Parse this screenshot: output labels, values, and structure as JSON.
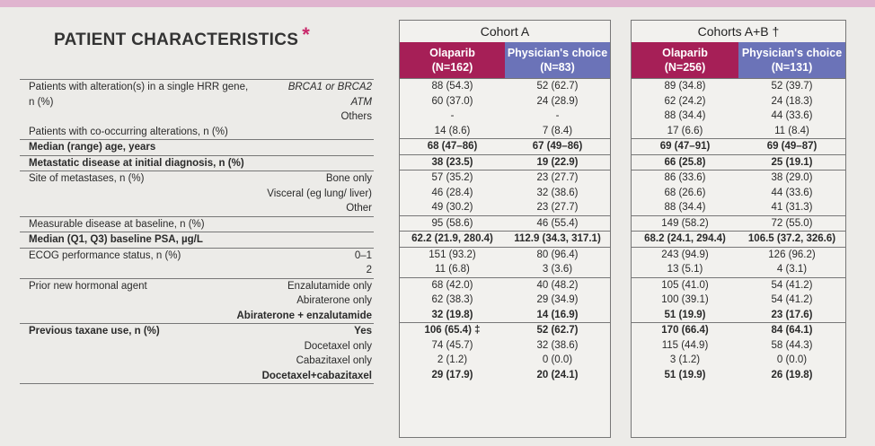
{
  "title": "PATIENT CHARACTERISTICS",
  "title_mark": "*",
  "cohort_a": {
    "title": "Cohort A",
    "col1": {
      "name": "Olaparib",
      "n": "(N=162)"
    },
    "col2": {
      "name": "Physician's choice",
      "n": "(N=83)"
    }
  },
  "cohort_ab": {
    "title": "Cohorts A+B †",
    "col1": {
      "name": "Olaparib",
      "n": "(N=256)"
    },
    "col2": {
      "name": "Physician's choice",
      "n": "(N=131)"
    }
  },
  "labels": {
    "hrr_l1": "Patients with alteration(s) in a single HRR gene,",
    "hrr_l2": "n (%)",
    "hrr_r1": "BRCA1 or BRCA2",
    "hrr_r2": "ATM",
    "hrr_r3": "Others",
    "cooc": "Patients with co-occurring alterations, n (%)",
    "age": "Median (range) age, years",
    "meta": "Metastatic disease at initial diagnosis, n (%)",
    "site": "Site of metastases, n (%)",
    "site_r1": "Bone only",
    "site_r2": "Visceral (eg lung/ liver)",
    "site_r3": "Other",
    "measurable": "Measurable disease at baseline, n (%)",
    "psa": "Median (Q1, Q3) baseline PSA, µg/L",
    "ecog": "ECOG performance status, n (%)",
    "ecog_r1": "0–1",
    "ecog_r2": "2",
    "hormonal": "Prior new hormonal agent",
    "hormonal_r1": "Enzalutamide only",
    "hormonal_r2": "Abiraterone only",
    "hormonal_r3": "Abiraterone + enzalutamide",
    "taxane": "Previous taxane use, n (%)",
    "taxane_r1": "Yes",
    "taxane_r2": "Docetaxel only",
    "taxane_r3": "Cabazitaxel only",
    "taxane_r4": "Docetaxel+cabazitaxel"
  },
  "values": {
    "a": {
      "hrr": [
        [
          "88 (54.3)",
          "52 (62.7)"
        ],
        [
          "60 (37.0)",
          "24 (28.9)"
        ],
        [
          "-",
          "-"
        ]
      ],
      "cooc": [
        "14 (8.6)",
        "7 (8.4)"
      ],
      "age": [
        "68 (47–86)",
        "67 (49–86)"
      ],
      "meta": [
        "38 (23.5)",
        "19 (22.9)"
      ],
      "site": [
        [
          "57 (35.2)",
          "23 (27.7)"
        ],
        [
          "46 (28.4)",
          "32 (38.6)"
        ],
        [
          "49 (30.2)",
          "23 (27.7)"
        ]
      ],
      "measurable": [
        "95 (58.6)",
        "46 (55.4)"
      ],
      "psa": [
        "62.2 (21.9, 280.4)",
        "112.9 (34.3, 317.1)"
      ],
      "ecog": [
        [
          "151 (93.2)",
          "80 (96.4)"
        ],
        [
          "11 (6.8)",
          "3 (3.6)"
        ]
      ],
      "hormonal": [
        [
          "68 (42.0)",
          "40 (48.2)"
        ],
        [
          "62 (38.3)",
          "29 (34.9)"
        ],
        [
          "32 (19.8)",
          "14 (16.9)"
        ]
      ],
      "taxane": [
        [
          "106 (65.4) ‡",
          "52 (62.7)"
        ],
        [
          "74 (45.7)",
          "32 (38.6)"
        ],
        [
          "2 (1.2)",
          "0 (0.0)"
        ],
        [
          "29 (17.9)",
          "20 (24.1)"
        ]
      ]
    },
    "ab": {
      "hrr": [
        [
          "89 (34.8)",
          "52 (39.7)"
        ],
        [
          "62 (24.2)",
          "24 (18.3)"
        ],
        [
          "88 (34.4)",
          "44 (33.6)"
        ]
      ],
      "cooc": [
        "17 (6.6)",
        "11 (8.4)"
      ],
      "age": [
        "69 (47–91)",
        "69 (49–87)"
      ],
      "meta": [
        "66 (25.8)",
        "25 (19.1)"
      ],
      "site": [
        [
          "86 (33.6)",
          "38 (29.0)"
        ],
        [
          "68 (26.6)",
          "44 (33.6)"
        ],
        [
          "88 (34.4)",
          "41 (31.3)"
        ]
      ],
      "measurable": [
        "149 (58.2)",
        "72 (55.0)"
      ],
      "psa": [
        "68.2 (24.1, 294.4)",
        "106.5 (37.2, 326.6)"
      ],
      "ecog": [
        [
          "243 (94.9)",
          "126 (96.2)"
        ],
        [
          "13 (5.1)",
          "4 (3.1)"
        ]
      ],
      "hormonal": [
        [
          "105 (41.0)",
          "54 (41.2)"
        ],
        [
          "100 (39.1)",
          "54 (41.2)"
        ],
        [
          "51 (19.9)",
          "23 (17.6)"
        ]
      ],
      "taxane": [
        [
          "170 (66.4)",
          "84 (64.1)"
        ],
        [
          "115 (44.9)",
          "58 (44.3)"
        ],
        [
          "3 (1.2)",
          "0 (0.0)"
        ],
        [
          "51 (19.9)",
          "26 (19.8)"
        ]
      ]
    }
  }
}
